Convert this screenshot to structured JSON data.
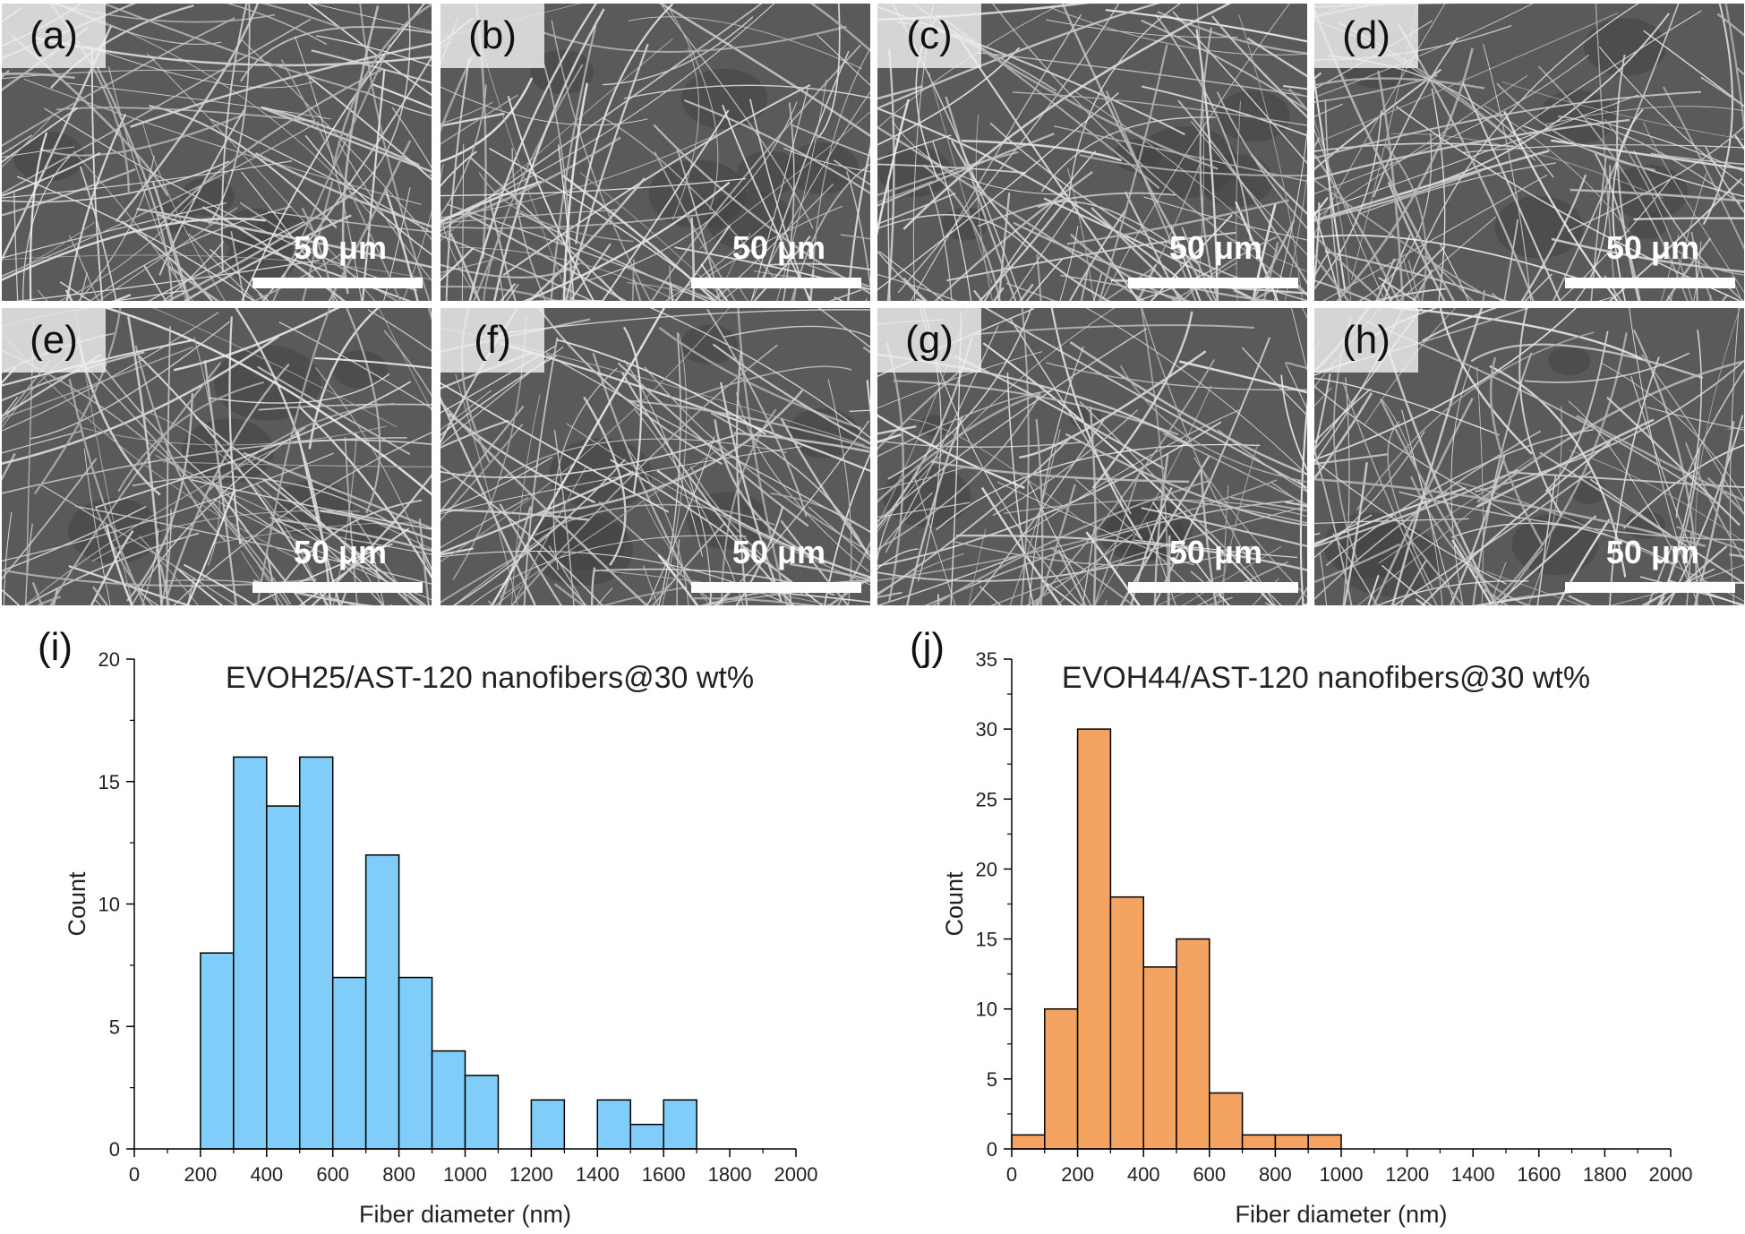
{
  "sem_panels": [
    {
      "label": "(a)",
      "scale": "50 μm"
    },
    {
      "label": "(b)",
      "scale": "50 μm"
    },
    {
      "label": "(c)",
      "scale": "50 μm"
    },
    {
      "label": "(d)",
      "scale": "50 μm"
    },
    {
      "label": "(e)",
      "scale": "50 μm"
    },
    {
      "label": "(f)",
      "scale": "50 μm"
    },
    {
      "label": "(g)",
      "scale": "50 μm"
    },
    {
      "label": "(h)",
      "scale": "50 μm"
    }
  ],
  "chart_labels": [
    "(i)",
    "(j)"
  ],
  "chart_data": [
    {
      "type": "bar",
      "title": "EVOH25/AST-120 nanofibers@30 wt%",
      "xlabel": "Fiber diameter (nm)",
      "ylabel": "Count",
      "xlim": [
        0,
        2000
      ],
      "ylim": [
        0,
        20
      ],
      "xticks": [
        0,
        200,
        400,
        600,
        800,
        1000,
        1200,
        1400,
        1600,
        1800,
        2000
      ],
      "yticks": [
        0,
        5,
        10,
        15,
        20
      ],
      "bin_width": 100,
      "bins": [
        {
          "start": 200,
          "end": 300,
          "count": 8
        },
        {
          "start": 300,
          "end": 400,
          "count": 16
        },
        {
          "start": 400,
          "end": 500,
          "count": 14
        },
        {
          "start": 500,
          "end": 600,
          "count": 16
        },
        {
          "start": 600,
          "end": 700,
          "count": 7
        },
        {
          "start": 700,
          "end": 800,
          "count": 12
        },
        {
          "start": 800,
          "end": 900,
          "count": 7
        },
        {
          "start": 900,
          "end": 1000,
          "count": 4
        },
        {
          "start": 1000,
          "end": 1100,
          "count": 3
        },
        {
          "start": 1200,
          "end": 1300,
          "count": 2
        },
        {
          "start": 1400,
          "end": 1500,
          "count": 2
        },
        {
          "start": 1500,
          "end": 1600,
          "count": 1
        },
        {
          "start": 1600,
          "end": 1700,
          "count": 2
        }
      ],
      "color": "#7fcdf8"
    },
    {
      "type": "bar",
      "title": "EVOH44/AST-120 nanofibers@30 wt%",
      "xlabel": "Fiber diameter (nm)",
      "ylabel": "Count",
      "xlim": [
        0,
        2000
      ],
      "ylim": [
        0,
        35
      ],
      "xticks": [
        0,
        200,
        400,
        600,
        800,
        1000,
        1200,
        1400,
        1600,
        1800,
        2000
      ],
      "yticks": [
        0,
        5,
        10,
        15,
        20,
        25,
        30,
        35
      ],
      "bin_width": 100,
      "bins": [
        {
          "start": 0,
          "end": 100,
          "count": 1
        },
        {
          "start": 100,
          "end": 200,
          "count": 10
        },
        {
          "start": 200,
          "end": 300,
          "count": 30
        },
        {
          "start": 300,
          "end": 400,
          "count": 18
        },
        {
          "start": 400,
          "end": 500,
          "count": 13
        },
        {
          "start": 500,
          "end": 600,
          "count": 15
        },
        {
          "start": 600,
          "end": 700,
          "count": 4
        },
        {
          "start": 700,
          "end": 800,
          "count": 1
        },
        {
          "start": 800,
          "end": 900,
          "count": 1
        },
        {
          "start": 900,
          "end": 1000,
          "count": 1
        }
      ],
      "color": "#f4a460"
    }
  ]
}
